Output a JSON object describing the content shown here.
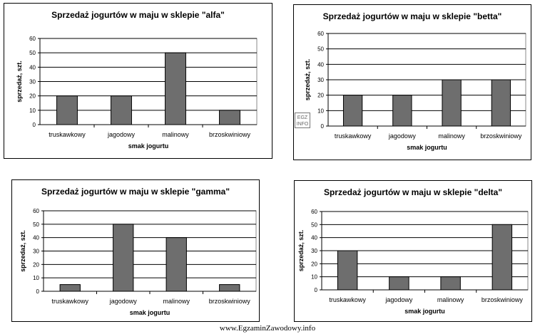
{
  "chart_data": [
    {
      "type": "bar",
      "title": "Sprzedaż jogurtów w maju w sklepie \"alfa\"",
      "xlabel": "smak jogurtu",
      "ylabel": "sprzedaż, szt.",
      "categories": [
        "truskawkowy",
        "jagodowy",
        "malinowy",
        "brzoskwiniowy"
      ],
      "values": [
        20,
        20,
        50,
        10
      ],
      "ylim": [
        0,
        60
      ],
      "yticks": [
        0,
        10,
        20,
        30,
        40,
        50,
        60
      ],
      "grid": true,
      "bar_color": "#6e6e6e"
    },
    {
      "type": "bar",
      "title": "Sprzedaż jogurtów w maju w sklepie \"betta\"",
      "xlabel": "smak jogurtu",
      "ylabel": "sprzedaż, szt.",
      "categories": [
        "truskawkowy",
        "jagodowy",
        "malinowy",
        "brzoskwiniowy"
      ],
      "values": [
        20,
        20,
        30,
        30
      ],
      "ylim": [
        0,
        60
      ],
      "yticks": [
        0,
        10,
        20,
        30,
        40,
        50,
        60
      ],
      "grid": true,
      "bar_color": "#6e6e6e"
    },
    {
      "type": "bar",
      "title": "Sprzedaż jogurtów w maju w sklepie \"gamma\"",
      "xlabel": "smak jogurtu",
      "ylabel": "sprzedaż, szt.",
      "categories": [
        "truskawkowy",
        "jagodowy",
        "malinowy",
        "brzoskwiniowy"
      ],
      "values": [
        5,
        50,
        40,
        5
      ],
      "ylim": [
        0,
        60
      ],
      "yticks": [
        0,
        10,
        20,
        30,
        40,
        50,
        60
      ],
      "grid": true,
      "bar_color": "#6e6e6e"
    },
    {
      "type": "bar",
      "title": "Sprzedaż jogurtów w maju w sklepie \"delta\"",
      "xlabel": "smak jogurtu",
      "ylabel": "sprzedaż, szt.",
      "categories": [
        "truskawkowy",
        "jagodowy",
        "malinowy",
        "brzoskwiniowy"
      ],
      "values": [
        30,
        10,
        10,
        50
      ],
      "ylim": [
        0,
        60
      ],
      "yticks": [
        0,
        10,
        20,
        30,
        40,
        50,
        60
      ],
      "grid": true,
      "bar_color": "#6e6e6e"
    }
  ],
  "stamp_text": "EGZ INFO",
  "footer": "www.EgzaminZawodowy.info"
}
